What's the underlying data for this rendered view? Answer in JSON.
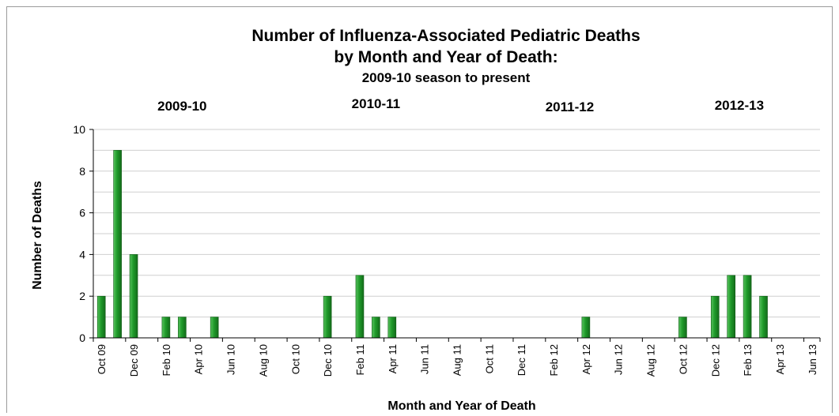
{
  "chart_data": {
    "type": "bar",
    "title_lines": [
      "Number of Influenza-Associated Pediatric Deaths",
      "by Month and Year of Death:",
      "2009-10 season to present"
    ],
    "xlabel": "Month and Year of Death",
    "ylabel": "Number of Deaths",
    "ylim": [
      0,
      10
    ],
    "yticks": [
      "0",
      "2",
      "4",
      "6",
      "8",
      "10"
    ],
    "grid": true,
    "bar_color": "#1f9a2a",
    "seasons": [
      "2009-10",
      "2010-11",
      "2011-12",
      "2012-13"
    ],
    "tick_labels": [
      "Oct 09",
      "Dec 09",
      "Feb 10",
      "Apr 10",
      "Jun 10",
      "Aug 10",
      "Oct 10",
      "Dec 10",
      "Feb 11",
      "Apr 11",
      "Jun 11",
      "Aug 11",
      "Oct 11",
      "Dec 11",
      "Feb 12",
      "Apr 12",
      "Jun 12",
      "Aug 12",
      "Oct 12",
      "Dec 12",
      "Feb 13",
      "Apr 13",
      "Jun 13"
    ],
    "values": [
      2,
      9,
      4,
      0,
      1,
      1,
      0,
      1,
      0,
      0,
      0,
      0,
      0,
      0,
      2,
      0,
      3,
      1,
      1,
      0,
      0,
      0,
      0,
      0,
      0,
      0,
      0,
      0,
      0,
      0,
      1,
      0,
      0,
      0,
      0,
      0,
      1,
      0,
      2,
      3,
      3,
      2,
      0,
      0,
      0
    ]
  }
}
